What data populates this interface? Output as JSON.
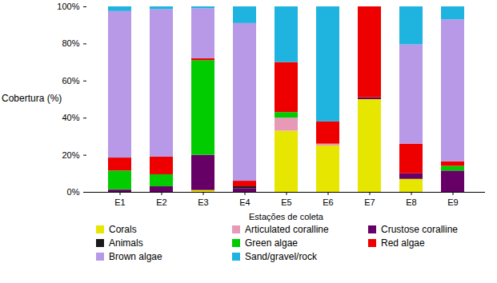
{
  "chart_data": {
    "type": "bar",
    "stacked": true,
    "x_label": "Estações de coleta",
    "y_label": "Cobertura (%)",
    "categories": [
      "E1",
      "E2",
      "E3",
      "E4",
      "E5",
      "E6",
      "E7",
      "E8",
      "E9"
    ],
    "series": [
      {
        "name": "Corals",
        "color": "#e6e600",
        "values": [
          0,
          0,
          1,
          0,
          33,
          25,
          50,
          7,
          0
        ]
      },
      {
        "name": "Articulated coralline",
        "color": "#e899b8",
        "values": [
          0,
          0,
          0,
          0,
          7,
          1,
          0,
          0,
          0
        ]
      },
      {
        "name": "Crustose coralline",
        "color": "#660066",
        "values": [
          1,
          3,
          19,
          2,
          0,
          0,
          1,
          3,
          11.5
        ]
      },
      {
        "name": "Animals",
        "color": "#1a1a1a",
        "values": [
          0.5,
          0,
          0,
          1,
          0,
          0,
          0,
          0,
          0
        ]
      },
      {
        "name": "Green algae",
        "color": "#00cc00",
        "values": [
          10,
          6.5,
          51,
          0,
          3,
          0,
          0,
          0,
          2.5
        ]
      },
      {
        "name": "Red algae",
        "color": "#ee0000",
        "values": [
          7,
          9.5,
          1,
          3,
          27,
          12,
          49,
          16,
          2.5
        ]
      },
      {
        "name": "Brown algae",
        "color": "#b799e8",
        "values": [
          79,
          79.5,
          27,
          85,
          0,
          0,
          0,
          53.5,
          76.5
        ]
      },
      {
        "name": "Sand/gravel/rock",
        "color": "#1fb3e0",
        "values": [
          2.5,
          1.5,
          1,
          9,
          30,
          62,
          0,
          20.5,
          7
        ]
      }
    ],
    "ylim": [
      0,
      100
    ],
    "yticks": [
      {
        "value": 0,
        "label": "0%"
      },
      {
        "value": 20,
        "label": "20%"
      },
      {
        "value": 40,
        "label": "40%"
      },
      {
        "value": 60,
        "label": "60%"
      },
      {
        "value": 80,
        "label": "80%"
      },
      {
        "value": 100,
        "label": "100%"
      }
    ],
    "grid": false,
    "legend": "bottom"
  }
}
